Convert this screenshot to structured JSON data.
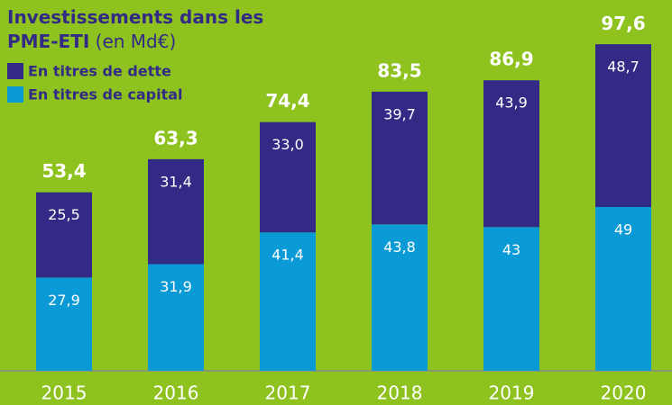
{
  "chart_data": {
    "type": "stacked_bar",
    "title": "Investissements dans les PME-ETI",
    "subtitle": "(en Md€)",
    "categories": [
      "2015",
      "2016",
      "2017",
      "2018",
      "2019",
      "2020"
    ],
    "series": [
      {
        "name": "En titres de capital",
        "color": "#0a9ad6",
        "values": [
          27.9,
          31.9,
          41.4,
          43.8,
          43,
          49
        ],
        "value_labels": [
          "27,9",
          "31,9",
          "41,4",
          "43,8",
          "43",
          "49"
        ]
      },
      {
        "name": "En titres de dette",
        "color": "#332a85",
        "values": [
          25.5,
          31.4,
          33.0,
          39.7,
          43.9,
          48.7
        ],
        "value_labels": [
          "25,5",
          "31,4",
          "33,0",
          "39,7",
          "43,9",
          "48,7"
        ]
      }
    ],
    "totals": [
      53.4,
      63.3,
      74.4,
      83.5,
      86.9,
      97.6
    ],
    "total_labels": [
      "53,4",
      "63,3",
      "74,4",
      "83,5",
      "86,9",
      "97,6"
    ],
    "ylim": [
      0,
      105
    ]
  }
}
